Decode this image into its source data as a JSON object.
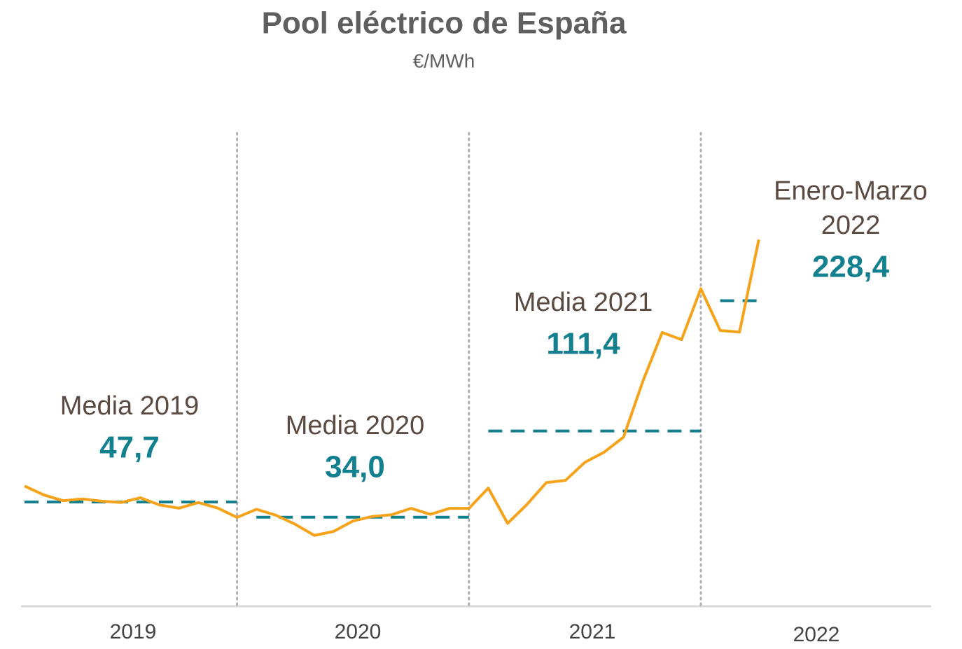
{
  "chart_data": {
    "type": "line",
    "title": "Pool eléctrico de España",
    "subtitle": "€/MWh",
    "color": "#f5a31a",
    "average_color": "#13808f",
    "ylim": [
      -46,
      379
    ],
    "years": [
      {
        "label": "2019",
        "annotation": [
          "Media 2019"
        ],
        "average": 47.7,
        "average_label": "47,7",
        "values": [
          61.99,
          54.01,
          48.82,
          50.41,
          48.39,
          47.19,
          51.46,
          44.96,
          42.11,
          47.17,
          42.19,
          33.8
        ]
      },
      {
        "label": "2020",
        "annotation": [
          "Media 2020"
        ],
        "average": 34.0,
        "average_label": "34,0",
        "values": [
          41.1,
          35.87,
          27.74,
          17.65,
          21.25,
          30.62,
          34.64,
          36.2,
          41.96,
          36.57,
          41.94,
          41.97
        ]
      },
      {
        "label": "2021",
        "annotation": [
          "Media 2021"
        ],
        "average": 111.4,
        "average_label": "111,4",
        "values": [
          60.17,
          28.49,
          45.45,
          65.02,
          67.12,
          83.3,
          92.42,
          105.94,
          156.14,
          199.9,
          193.43,
          239.17
        ]
      },
      {
        "label": "2022",
        "annotation": [
          "Enero-Marzo",
          "2022"
        ],
        "average": 228.4,
        "average_label": "228,4",
        "values": [
          201.72,
          200.22,
          283.3
        ]
      }
    ]
  }
}
